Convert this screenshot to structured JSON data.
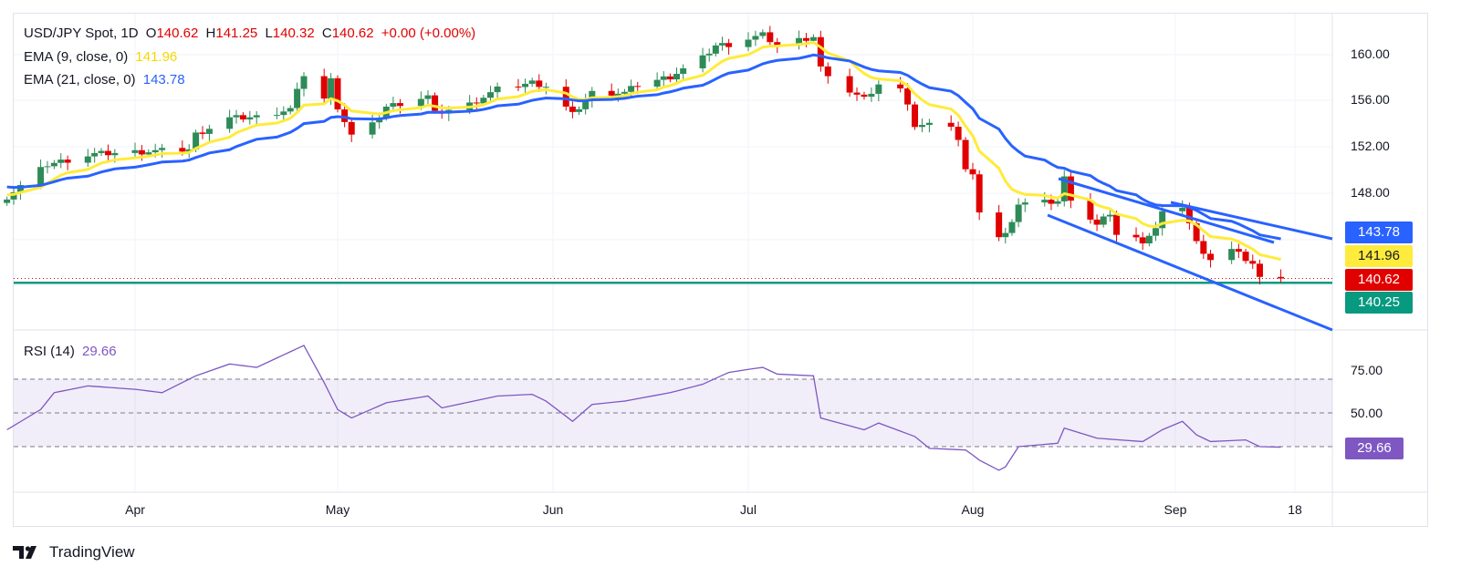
{
  "header": {
    "symbol": "USD/JPY Spot, 1D",
    "o_label": "O",
    "o": "140.62",
    "h_label": "H",
    "h": "141.25",
    "l_label": "L",
    "l": "140.32",
    "c_label": "C",
    "c": "140.62",
    "change": "+0.00 (+0.00%)"
  },
  "ema9": {
    "label": "EMA (9, close, 0)",
    "value": "141.96",
    "color": "#ffeb3b"
  },
  "ema21": {
    "label": "EMA (21, close, 0)",
    "value": "143.78",
    "color": "#2962ff"
  },
  "rsi": {
    "label": "RSI (14)",
    "value": "29.66",
    "color": "#7e57c2"
  },
  "price_tags": {
    "ema21": "143.78",
    "ema9": "141.96",
    "last": "140.62",
    "support": "140.25"
  },
  "colors": {
    "up": "#2e8b57",
    "down": "#e00000",
    "support": "#089981"
  },
  "branding": "TradingView",
  "chart_data": {
    "type": "candlestick",
    "title": "USD/JPY Spot, 1D",
    "price_ticks": [
      "160.00",
      "156.00",
      "152.00",
      "148.00"
    ],
    "rsi_ticks": [
      "75.00",
      "50.00"
    ],
    "rsi_levels": [
      70,
      50,
      30
    ],
    "time_ticks": [
      "Apr",
      "May",
      "Jun",
      "Jul",
      "Aug",
      "Sep",
      "18"
    ],
    "support_level": 140.25,
    "ylim": [
      136.3,
      164.3
    ],
    "close_keypoints": [
      [
        "2024-03-13",
        147.7
      ],
      [
        "2024-03-19",
        150.5
      ],
      [
        "2024-03-26",
        151.4
      ],
      [
        "2024-04-09",
        151.8
      ],
      [
        "2024-04-10",
        153.1
      ],
      [
        "2024-04-15",
        154.5
      ],
      [
        "2024-04-19",
        154.6
      ],
      [
        "2024-04-24",
        155.3
      ],
      [
        "2024-04-26",
        158.3
      ],
      [
        "2024-04-29",
        156.2
      ],
      [
        "2024-04-30",
        157.8
      ],
      [
        "2024-05-01",
        155.5
      ],
      [
        "2024-05-03",
        153.0
      ],
      [
        "2024-05-06",
        153.9
      ],
      [
        "2024-05-08",
        155.5
      ],
      [
        "2024-05-10",
        155.8
      ],
      [
        "2024-05-14",
        156.4
      ],
      [
        "2024-05-15",
        154.9
      ],
      [
        "2024-05-20",
        155.7
      ],
      [
        "2024-05-24",
        157.0
      ],
      [
        "2024-05-29",
        157.6
      ],
      [
        "2024-05-31",
        157.3
      ],
      [
        "2024-06-04",
        154.8
      ],
      [
        "2024-06-07",
        156.7
      ],
      [
        "2024-06-12",
        156.7
      ],
      [
        "2024-06-14",
        157.4
      ],
      [
        "2024-06-19",
        158.1
      ],
      [
        "2024-06-24",
        159.7
      ],
      [
        "2024-06-26",
        160.8
      ],
      [
        "2024-06-28",
        160.9
      ],
      [
        "2024-07-03",
        161.7
      ],
      [
        "2024-07-05",
        160.8
      ],
      [
        "2024-07-10",
        161.6
      ],
      [
        "2024-07-11",
        158.9
      ],
      [
        "2024-07-12",
        157.9
      ],
      [
        "2024-07-17",
        156.2
      ],
      [
        "2024-07-19",
        157.5
      ],
      [
        "2024-07-22",
        157.0
      ],
      [
        "2024-07-24",
        153.9
      ],
      [
        "2024-07-29",
        154.0
      ],
      [
        "2024-07-30",
        152.7
      ],
      [
        "2024-07-31",
        150.0
      ],
      [
        "2024-08-01",
        149.4
      ],
      [
        "2024-08-02",
        146.5
      ],
      [
        "2024-08-05",
        144.2
      ],
      [
        "2024-08-06",
        144.4
      ],
      [
        "2024-08-08",
        147.1
      ],
      [
        "2024-08-12",
        147.2
      ],
      [
        "2024-08-14",
        147.3
      ],
      [
        "2024-08-15",
        149.3
      ],
      [
        "2024-08-16",
        147.6
      ],
      [
        "2024-08-20",
        145.2
      ],
      [
        "2024-08-22",
        146.3
      ],
      [
        "2024-08-23",
        144.4
      ],
      [
        "2024-08-27",
        143.9
      ],
      [
        "2024-08-29",
        144.9
      ],
      [
        "2024-08-30",
        146.2
      ],
      [
        "2024-09-02",
        146.9
      ],
      [
        "2024-09-03",
        145.4
      ],
      [
        "2024-09-04",
        143.7
      ],
      [
        "2024-09-06",
        142.3
      ],
      [
        "2024-09-09",
        143.1
      ],
      [
        "2024-09-11",
        142.3
      ],
      [
        "2024-09-12",
        141.9
      ],
      [
        "2024-09-13",
        140.6
      ],
      [
        "2024-09-16",
        140.62
      ]
    ],
    "rsi_keypoints": [
      [
        "2024-03-13",
        40
      ],
      [
        "2024-03-18",
        52
      ],
      [
        "2024-03-20",
        62
      ],
      [
        "2024-03-25",
        66
      ],
      [
        "2024-04-01",
        64
      ],
      [
        "2024-04-05",
        62
      ],
      [
        "2024-04-10",
        72
      ],
      [
        "2024-04-15",
        79
      ],
      [
        "2024-04-19",
        77
      ],
      [
        "2024-04-26",
        90
      ],
      [
        "2024-04-29",
        68
      ],
      [
        "2024-05-01",
        52
      ],
      [
        "2024-05-03",
        47
      ],
      [
        "2024-05-08",
        56
      ],
      [
        "2024-05-14",
        60
      ],
      [
        "2024-05-16",
        53
      ],
      [
        "2024-05-24",
        60
      ],
      [
        "2024-05-29",
        61
      ],
      [
        "2024-05-31",
        57
      ],
      [
        "2024-06-04",
        45
      ],
      [
        "2024-06-07",
        55
      ],
      [
        "2024-06-12",
        57
      ],
      [
        "2024-06-19",
        62
      ],
      [
        "2024-06-24",
        67
      ],
      [
        "2024-06-28",
        74
      ],
      [
        "2024-07-03",
        77
      ],
      [
        "2024-07-05",
        73
      ],
      [
        "2024-07-10",
        72
      ],
      [
        "2024-07-11",
        47
      ],
      [
        "2024-07-17",
        40
      ],
      [
        "2024-07-19",
        44
      ],
      [
        "2024-07-24",
        36
      ],
      [
        "2024-07-26",
        29
      ],
      [
        "2024-07-31",
        28
      ],
      [
        "2024-08-02",
        22
      ],
      [
        "2024-08-05",
        16
      ],
      [
        "2024-08-06",
        18
      ],
      [
        "2024-08-08",
        30
      ],
      [
        "2024-08-14",
        32
      ],
      [
        "2024-08-15",
        41
      ],
      [
        "2024-08-20",
        35
      ],
      [
        "2024-08-27",
        33
      ],
      [
        "2024-08-30",
        40
      ],
      [
        "2024-09-02",
        45
      ],
      [
        "2024-09-04",
        37
      ],
      [
        "2024-09-06",
        33
      ],
      [
        "2024-09-11",
        34
      ],
      [
        "2024-09-13",
        30
      ],
      [
        "2024-09-16",
        29.66
      ]
    ]
  }
}
